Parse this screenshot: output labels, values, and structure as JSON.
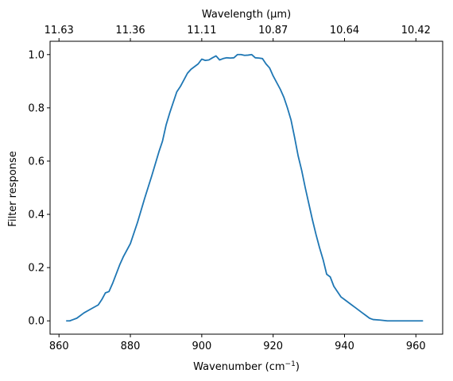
{
  "chart_data": {
    "type": "line",
    "xlabel": "Wavenumber (cm",
    "xlabel_sup": "−1",
    "xlabel_suffix": ")",
    "ylabel": "Filter response",
    "top_xlabel": "Wavelength (μm)",
    "xlim": [
      857.5,
      967.5
    ],
    "ylim": [
      -0.05,
      1.05
    ],
    "xticks": [
      860,
      880,
      900,
      920,
      940,
      960
    ],
    "yticks": [
      0.0,
      0.2,
      0.4,
      0.6,
      0.8,
      1.0
    ],
    "ytick_labels": [
      "0.0",
      "0.2",
      "0.4",
      "0.6",
      "0.8",
      "1.0"
    ],
    "top_xticks": [
      "11.63",
      "11.36",
      "11.11",
      "10.87",
      "10.64",
      "10.42"
    ],
    "grid": false,
    "line_color": "#1f77b4",
    "series": [
      {
        "x": [
          862,
          863,
          864,
          865,
          867,
          869,
          871,
          872,
          873,
          874,
          875,
          876,
          877,
          878,
          880,
          882,
          884,
          886,
          888,
          889,
          890,
          891,
          892,
          893,
          894,
          895,
          896,
          897,
          898,
          899,
          900,
          901,
          902,
          903,
          904,
          905,
          906,
          907,
          908,
          909,
          910,
          911,
          912,
          913,
          914,
          915,
          916,
          917,
          918,
          919,
          920,
          921,
          922,
          923,
          924,
          925,
          926,
          927,
          928,
          929,
          930,
          931,
          932,
          933,
          934,
          935,
          936,
          937,
          938,
          939,
          940,
          941,
          942,
          943,
          944,
          945,
          946,
          947,
          948,
          950,
          952,
          954,
          956,
          958,
          960,
          962
        ],
        "y": [
          0.0,
          0.0,
          0.005,
          0.01,
          0.03,
          0.045,
          0.06,
          0.08,
          0.105,
          0.11,
          0.14,
          0.175,
          0.21,
          0.24,
          0.29,
          0.37,
          0.46,
          0.545,
          0.635,
          0.675,
          0.735,
          0.78,
          0.82,
          0.86,
          0.88,
          0.905,
          0.93,
          0.945,
          0.955,
          0.965,
          0.983,
          0.978,
          0.98,
          0.988,
          0.995,
          0.98,
          0.985,
          0.988,
          0.987,
          0.988,
          1.0,
          1.0,
          0.997,
          0.998,
          1.0,
          0.988,
          0.987,
          0.985,
          0.965,
          0.95,
          0.92,
          0.895,
          0.87,
          0.84,
          0.8,
          0.755,
          0.69,
          0.62,
          0.565,
          0.5,
          0.44,
          0.38,
          0.325,
          0.275,
          0.23,
          0.175,
          0.165,
          0.13,
          0.11,
          0.09,
          0.08,
          0.07,
          0.06,
          0.05,
          0.04,
          0.03,
          0.02,
          0.01,
          0.005,
          0.003,
          0.0,
          0.0,
          0.0,
          0.0,
          0.0,
          0.0
        ]
      }
    ]
  }
}
